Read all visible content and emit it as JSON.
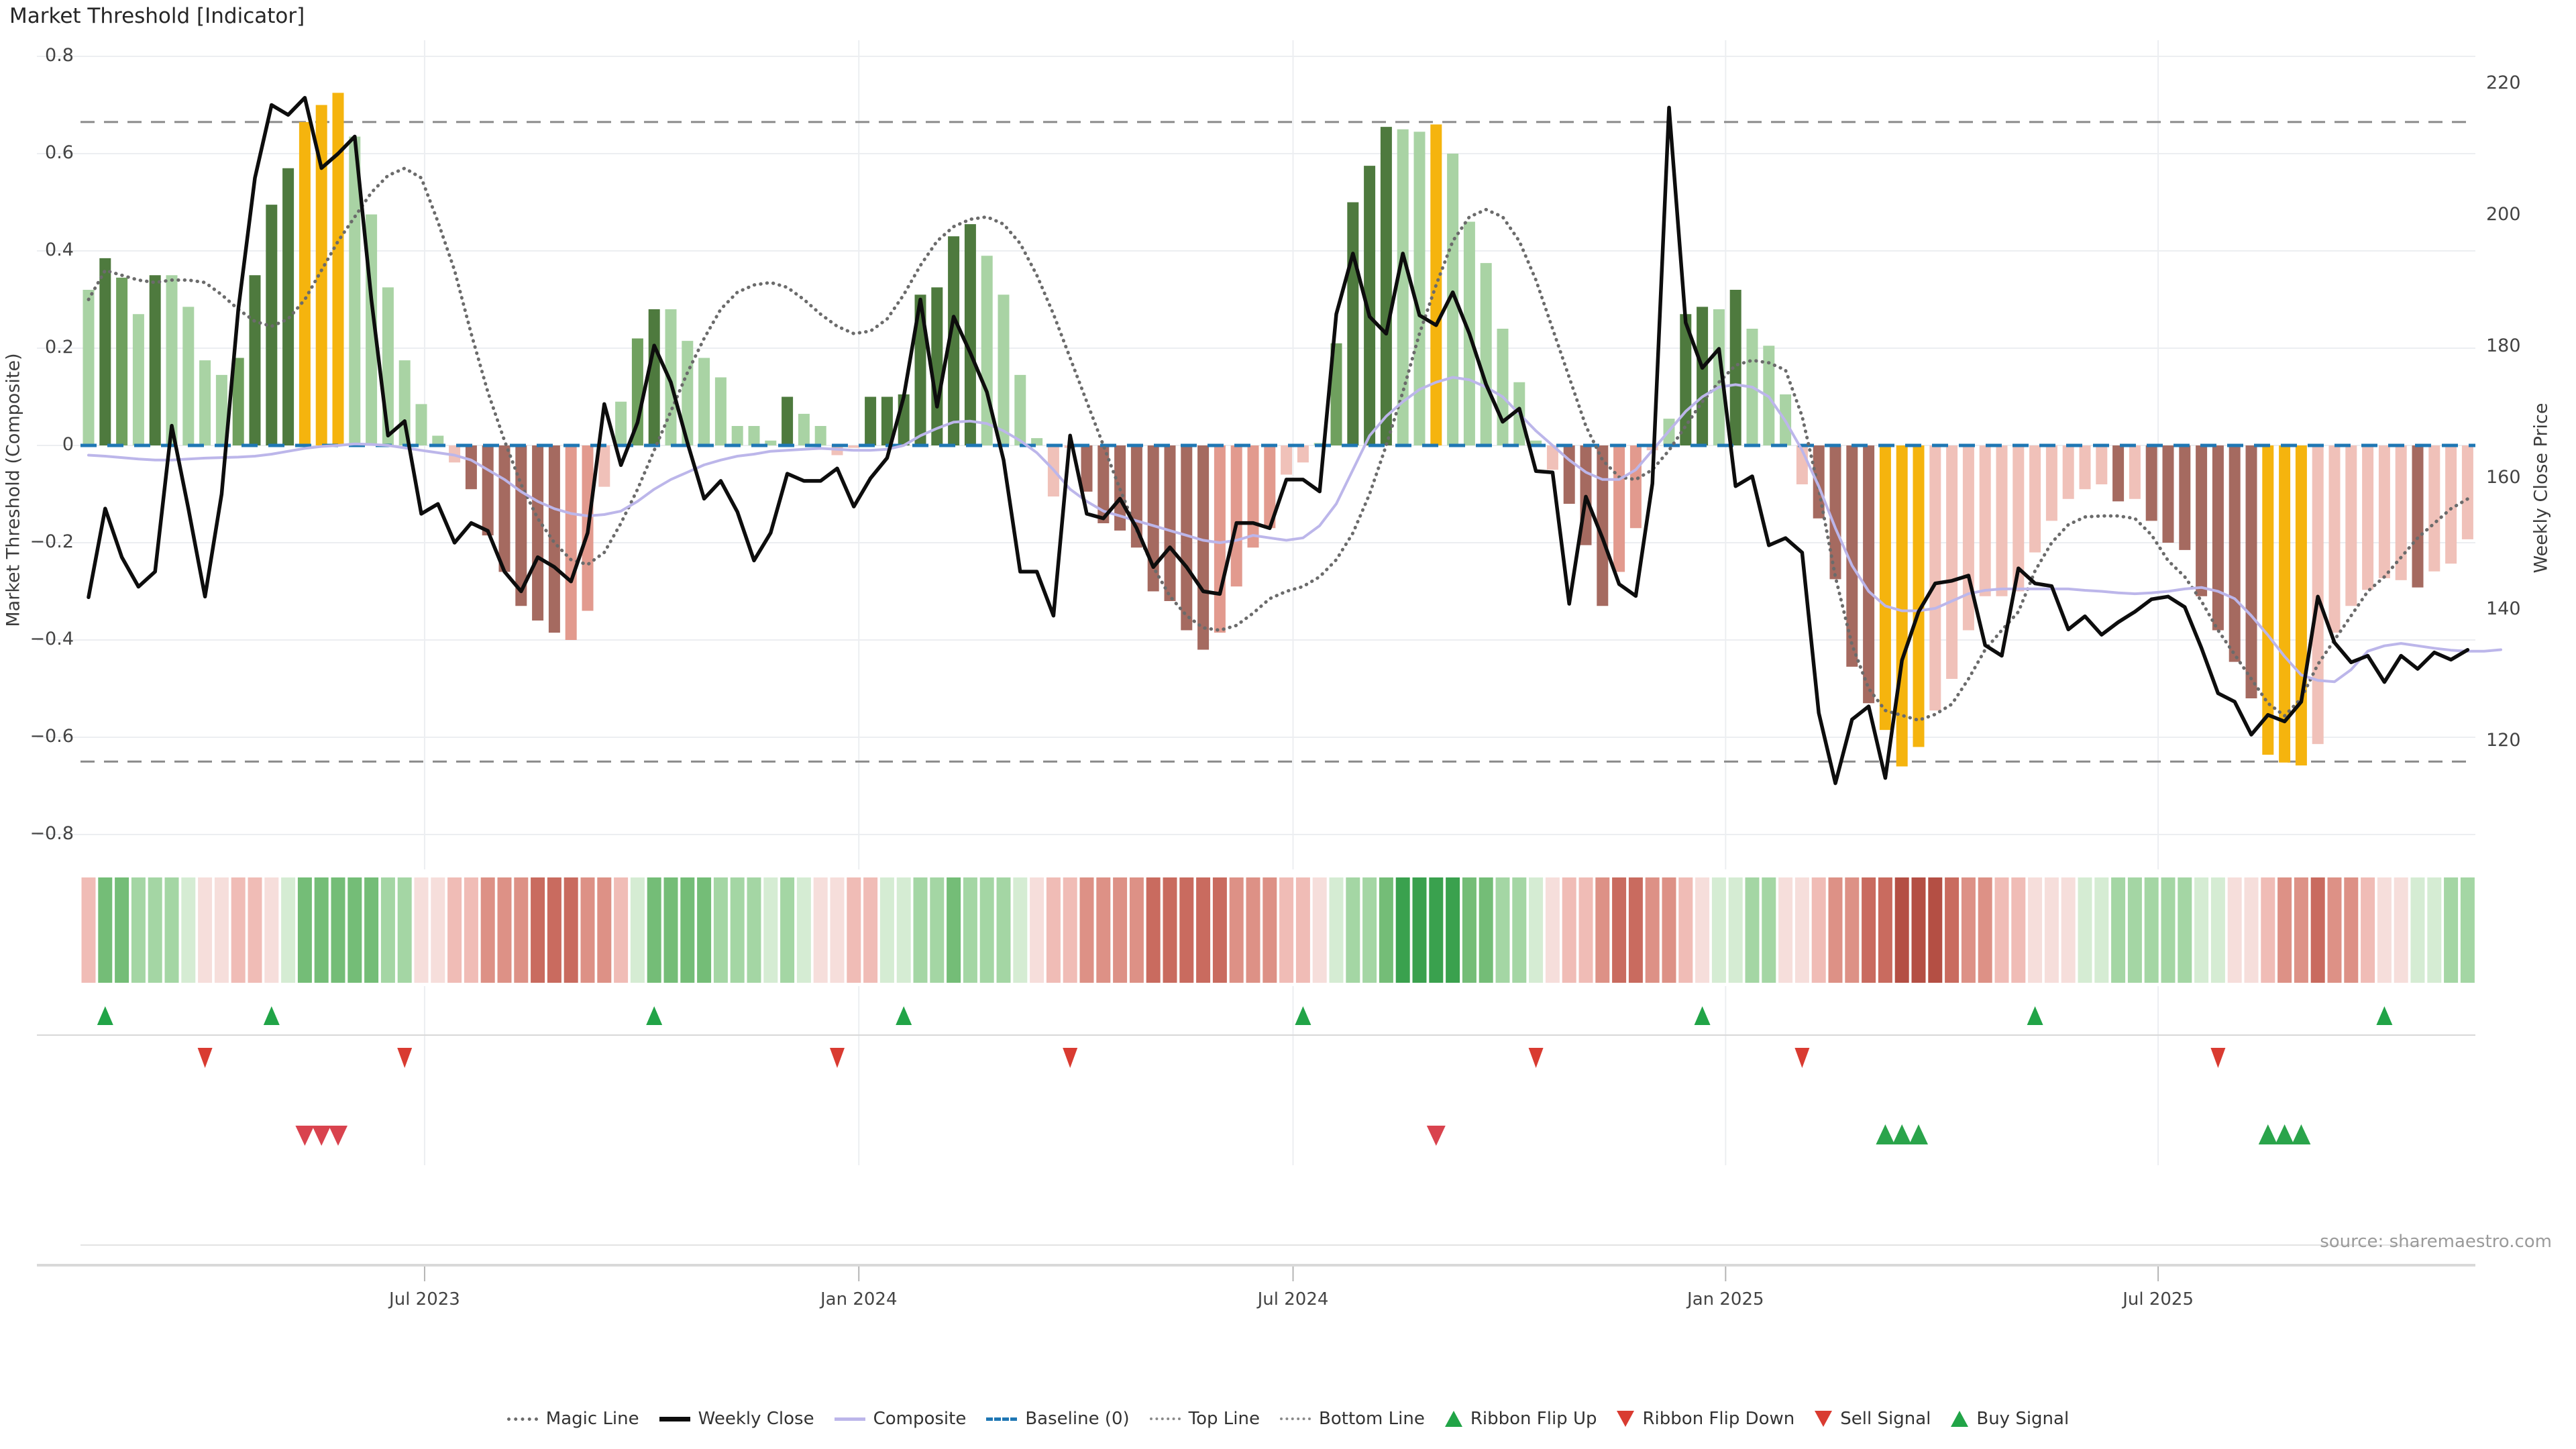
{
  "title": "Market Threshold [Indicator]",
  "source_note": "source: sharemaestro.com",
  "colors": {
    "bar": {
      "g1": "#a9d3a4",
      "g2": "#6fa05e",
      "g3": "#4e7a3e",
      "gold": "#f5b40e",
      "r1": "#f0c1b9",
      "r2": "#e29a8e",
      "r3": "#a56a60"
    },
    "ribbon": {
      "rg3": "#3aa14e",
      "rg2": "#74bd77",
      "rg1": "#a4d6a4",
      "rg0": "#d5ecd3",
      "rr0": "#f6dedb",
      "rr1": "#f0bcb6",
      "rr2": "#dd9186",
      "rr3": "#c96b5f",
      "rr4": "#b44f44"
    },
    "weekly_close": "#0d0d0d",
    "composite": "#bcb6ea",
    "magic": "#6b6b6b",
    "baseline": "#1f77b4",
    "guide": "#8a8a8a",
    "grid": "#eceef1",
    "axis_line": "#d9d9d9",
    "tick_mark": "#b5b5b5",
    "flip_up_green": "#21a447",
    "flip_down_red": "#d93b31",
    "sell_red": "#d9434e",
    "buy_green": "#2aa44b"
  },
  "legend": [
    {
      "label": "Magic Line",
      "marker": "dotted-gray"
    },
    {
      "label": "Weekly Close",
      "marker": "solid-black"
    },
    {
      "label": "Composite",
      "marker": "solid-lavender"
    },
    {
      "label": "Baseline (0)",
      "marker": "dashed-blue"
    },
    {
      "label": "Top Line",
      "marker": "dotted-gray-thin"
    },
    {
      "label": "Bottom Line",
      "marker": "dotted-gray-thin"
    },
    {
      "label": "Ribbon Flip Up",
      "marker": "tri-up-green"
    },
    {
      "label": "Ribbon Flip Down",
      "marker": "tri-down-red"
    },
    {
      "label": "Sell Signal",
      "marker": "tri-down-red"
    },
    {
      "label": "Buy Signal",
      "marker": "tri-up-green"
    }
  ],
  "chart_data": {
    "type": "bar+line",
    "title": "Market Threshold [Indicator]",
    "left_axis": {
      "label": "Market Threshold (Composite)",
      "ticks": [
        {
          "v": 0.8,
          "label": "0.8"
        },
        {
          "v": 0.6,
          "label": "0.6"
        },
        {
          "v": 0.4,
          "label": "0.4"
        },
        {
          "v": 0.2,
          "label": "0.2"
        },
        {
          "v": 0,
          "label": "0"
        },
        {
          "v": -0.2,
          "label": "−0.2"
        },
        {
          "v": -0.4,
          "label": "−0.4"
        },
        {
          "v": -0.6,
          "label": "−0.6"
        },
        {
          "v": -0.8,
          "label": "−0.8"
        }
      ],
      "ylim": [
        -0.9,
        0.84
      ]
    },
    "right_axis": {
      "label": "Weekly Close Price",
      "ticks": [
        {
          "p": 220,
          "label": "220"
        },
        {
          "p": 200,
          "label": "200"
        },
        {
          "p": 180,
          "label": "180"
        },
        {
          "p": 160,
          "label": "160"
        },
        {
          "p": 140,
          "label": "140"
        },
        {
          "p": 120,
          "label": "120"
        }
      ]
    },
    "x_axis": {
      "ticks": [
        {
          "label": "Jul 2023",
          "week": 20.2
        },
        {
          "label": "Jan 2024",
          "week": 46.3
        },
        {
          "label": "Jul 2024",
          "week": 72.4
        },
        {
          "label": "Jan 2025",
          "week": 98.4
        },
        {
          "label": "Jul 2025",
          "week": 124.4
        }
      ]
    },
    "top_line": 0.665,
    "bottom_line": -0.65,
    "baseline": 0,
    "weeks": 144,
    "bars": {
      "values": [
        0.32,
        0.385,
        0.345,
        0.27,
        0.35,
        0.35,
        0.285,
        0.175,
        0.145,
        0.18,
        0.35,
        0.495,
        0.57,
        0.665,
        0.7,
        0.725,
        0.635,
        0.475,
        0.325,
        0.175,
        0.085,
        0.02,
        -0.035,
        -0.09,
        -0.185,
        -0.26,
        -0.33,
        -0.36,
        -0.385,
        -0.4,
        -0.34,
        -0.085,
        0.09,
        0.22,
        0.28,
        0.28,
        0.215,
        0.18,
        0.14,
        0.04,
        0.04,
        0.01,
        0.1,
        0.065,
        0.04,
        -0.02,
        -0.005,
        0.1,
        0.1,
        0.105,
        0.31,
        0.325,
        0.43,
        0.455,
        0.39,
        0.31,
        0.145,
        0.015,
        -0.105,
        -0.005,
        -0.095,
        -0.16,
        -0.175,
        -0.21,
        -0.3,
        -0.32,
        -0.38,
        -0.42,
        -0.385,
        -0.29,
        -0.21,
        -0.17,
        -0.06,
        -0.035,
        0.005,
        0.21,
        0.5,
        0.575,
        0.655,
        0.65,
        0.645,
        0.66,
        0.6,
        0.46,
        0.375,
        0.24,
        0.13,
        0.01,
        -0.05,
        -0.12,
        -0.205,
        -0.33,
        -0.26,
        -0.17,
        -0.01,
        0.055,
        0.27,
        0.285,
        0.28,
        0.32,
        0.24,
        0.205,
        0.105,
        -0.08,
        -0.15,
        -0.275,
        -0.455,
        -0.53,
        -0.585,
        -0.66,
        -0.62,
        -0.545,
        -0.48,
        -0.38,
        -0.31,
        -0.31,
        -0.3,
        -0.22,
        -0.155,
        -0.11,
        -0.09,
        -0.08,
        -0.115,
        -0.11,
        -0.155,
        -0.2,
        -0.215,
        -0.31,
        -0.38,
        -0.445,
        -0.52,
        -0.636,
        -0.652,
        -0.658,
        -0.614,
        -0.385,
        -0.33,
        -0.297,
        -0.273,
        -0.277,
        -0.292,
        -0.259,
        -0.243,
        -0.193
      ],
      "color_classes": [
        "g1",
        "g3",
        "g2",
        "g1",
        "g3",
        "g1",
        "g1",
        "g1",
        "g1",
        "g2",
        "g3",
        "g3",
        "g3",
        "gold",
        "gold",
        "gold",
        "g1",
        "g1",
        "g1",
        "g1",
        "g1",
        "g1",
        "r1",
        "r3",
        "r3",
        "r3",
        "r3",
        "r3",
        "r3",
        "r2",
        "r2",
        "r1",
        "g1",
        "g2",
        "g3",
        "g1",
        "g1",
        "g1",
        "g1",
        "g1",
        "g1",
        "g1",
        "g3",
        "g1",
        "g1",
        "r1",
        "r1",
        "g3",
        "g3",
        "g3",
        "g3",
        "g3",
        "g3",
        "g3",
        "g1",
        "g1",
        "g1",
        "g1",
        "r1",
        "r1",
        "r3",
        "r3",
        "r3",
        "r3",
        "r3",
        "r3",
        "r3",
        "r3",
        "r2",
        "r2",
        "r2",
        "r2",
        "r1",
        "r1",
        "g1",
        "g2",
        "g3",
        "g3",
        "g3",
        "g1",
        "g1",
        "gold",
        "g1",
        "g1",
        "g1",
        "g1",
        "g1",
        "g1",
        "r1",
        "r3",
        "r3",
        "r3",
        "r2",
        "r2",
        "r1",
        "g1",
        "g3",
        "g3",
        "g1",
        "g3",
        "g1",
        "g1",
        "g1",
        "r1",
        "r3",
        "r3",
        "r3",
        "r3",
        "gold",
        "gold",
        "gold",
        "r1",
        "r1",
        "r1",
        "r1",
        "r1",
        "r1",
        "r1",
        "r1",
        "r1",
        "r1",
        "r1",
        "r3",
        "r1",
        "r3",
        "r3",
        "r3",
        "r3",
        "r3",
        "r3",
        "r3",
        "gold",
        "gold",
        "gold",
        "r1",
        "r1",
        "r1",
        "r1",
        "r1",
        "r1",
        "r3",
        "r1",
        "r1",
        "r1"
      ]
    },
    "series": [
      {
        "name": "Weekly Close",
        "axis": "price",
        "values": [
          141.9,
          155.4,
          148.0,
          143.5,
          145.8,
          168.0,
          155.4,
          142.0,
          157.6,
          185.7,
          205.7,
          216.8,
          215.3,
          217.9,
          207.2,
          209.4,
          212.0,
          187.2,
          166.5,
          168.7,
          154.6,
          156.1,
          150.2,
          153.2,
          152.0,
          145.8,
          142.8,
          148.0,
          146.5,
          144.3,
          151.7,
          171.3,
          162.0,
          168.5,
          180.2,
          174.6,
          165.4,
          156.9,
          159.6,
          154.9,
          147.5,
          151.7,
          160.7,
          159.6,
          159.6,
          161.5,
          155.7,
          160.0,
          163.1,
          172.4,
          187.2,
          170.9,
          184.6,
          179.1,
          173.1,
          162.8,
          145.8,
          145.8,
          139.1,
          166.5,
          154.6,
          153.9,
          156.9,
          152.4,
          146.5,
          149.5,
          146.5,
          142.8,
          142.4,
          153.2,
          153.2,
          152.4,
          159.8,
          159.8,
          158.0,
          185.0,
          194.2,
          184.6,
          182.0,
          194.2,
          184.8,
          183.3,
          188.3,
          182.0,
          174.3,
          168.6,
          170.6,
          161.1,
          160.9,
          140.9,
          157.2,
          150.9,
          143.9,
          142.1,
          159.2,
          216.4,
          183.7,
          176.8,
          179.7,
          158.8,
          160.3,
          149.8,
          150.9,
          148.7,
          124.3,
          113.6,
          123.3,
          125.3,
          114.4,
          132.3,
          139.7,
          144.0,
          144.4,
          145.2,
          134.6,
          133.0,
          146.3,
          144.0,
          143.6,
          137.0,
          139.0,
          136.2,
          138.1,
          139.7,
          141.6,
          142.0,
          140.4,
          134.2,
          127.3,
          126.0,
          121.0,
          124.0,
          123.0,
          126.0,
          142.0,
          135.0,
          132.0,
          133.0,
          129.0,
          133.0,
          131.0,
          133.5,
          132.4,
          133.9
        ]
      },
      {
        "name": "Composite",
        "axis": "threshold",
        "values": [
          -0.02,
          -0.022,
          -0.025,
          -0.028,
          -0.03,
          -0.03,
          -0.028,
          -0.026,
          -0.025,
          -0.024,
          -0.022,
          -0.018,
          -0.012,
          -0.006,
          -0.002,
          0,
          0.003,
          0.002,
          0,
          -0.005,
          -0.01,
          -0.015,
          -0.02,
          -0.03,
          -0.05,
          -0.07,
          -0.095,
          -0.115,
          -0.13,
          -0.14,
          -0.145,
          -0.142,
          -0.135,
          -0.115,
          -0.09,
          -0.07,
          -0.055,
          -0.04,
          -0.03,
          -0.022,
          -0.018,
          -0.012,
          -0.01,
          -0.008,
          -0.006,
          -0.008,
          -0.01,
          -0.01,
          -0.008,
          0,
          0.02,
          0.035,
          0.048,
          0.05,
          0.045,
          0.03,
          0.01,
          -0.015,
          -0.05,
          -0.09,
          -0.115,
          -0.135,
          -0.145,
          -0.155,
          -0.165,
          -0.175,
          -0.185,
          -0.195,
          -0.2,
          -0.195,
          -0.185,
          -0.19,
          -0.195,
          -0.19,
          -0.165,
          -0.12,
          -0.05,
          0.02,
          0.06,
          0.09,
          0.115,
          0.13,
          0.14,
          0.135,
          0.12,
          0.1,
          0.065,
          0.03,
          0,
          -0.03,
          -0.055,
          -0.07,
          -0.07,
          -0.05,
          -0.01,
          0.03,
          0.07,
          0.1,
          0.12,
          0.125,
          0.12,
          0.1,
          0.05,
          -0.01,
          -0.084,
          -0.17,
          -0.247,
          -0.3,
          -0.33,
          -0.34,
          -0.34,
          -0.335,
          -0.32,
          -0.305,
          -0.298,
          -0.295,
          -0.295,
          -0.295,
          -0.295,
          -0.295,
          -0.298,
          -0.3,
          -0.303,
          -0.305,
          -0.303,
          -0.3,
          -0.295,
          -0.292,
          -0.3,
          -0.315,
          -0.35,
          -0.39,
          -0.434,
          -0.472,
          -0.483,
          -0.486,
          -0.461,
          -0.423,
          -0.412,
          -0.407,
          -0.412,
          -0.417,
          -0.421,
          -0.423,
          -0.423,
          -0.42
        ]
      },
      {
        "name": "Magic Line",
        "axis": "threshold",
        "values": [
          0.3,
          0.36,
          0.35,
          0.34,
          0.335,
          0.34,
          0.34,
          0.335,
          0.31,
          0.28,
          0.255,
          0.245,
          0.26,
          0.3,
          0.36,
          0.42,
          0.47,
          0.52,
          0.555,
          0.57,
          0.55,
          0.46,
          0.36,
          0.23,
          0.11,
          0.01,
          -0.08,
          -0.15,
          -0.2,
          -0.235,
          -0.245,
          -0.22,
          -0.16,
          -0.09,
          -0.01,
          0.07,
          0.15,
          0.22,
          0.28,
          0.315,
          0.33,
          0.335,
          0.325,
          0.3,
          0.27,
          0.245,
          0.23,
          0.235,
          0.26,
          0.31,
          0.37,
          0.42,
          0.45,
          0.465,
          0.47,
          0.455,
          0.415,
          0.35,
          0.27,
          0.18,
          0.09,
          0,
          -0.09,
          -0.175,
          -0.25,
          -0.31,
          -0.35,
          -0.375,
          -0.38,
          -0.37,
          -0.345,
          -0.315,
          -0.3,
          -0.29,
          -0.27,
          -0.235,
          -0.18,
          -0.1,
          0,
          0.11,
          0.23,
          0.33,
          0.42,
          0.47,
          0.485,
          0.47,
          0.42,
          0.34,
          0.24,
          0.14,
          0.04,
          -0.03,
          -0.065,
          -0.07,
          -0.05,
          -0.01,
          0.04,
          0.09,
          0.13,
          0.165,
          0.175,
          0.17,
          0.155,
          0.06,
          -0.09,
          -0.27,
          -0.41,
          -0.5,
          -0.545,
          -0.555,
          -0.565,
          -0.553,
          -0.532,
          -0.48,
          -0.42,
          -0.38,
          -0.342,
          -0.258,
          -0.2,
          -0.163,
          -0.147,
          -0.145,
          -0.145,
          -0.15,
          -0.184,
          -0.237,
          -0.27,
          -0.32,
          -0.38,
          -0.43,
          -0.48,
          -0.53,
          -0.556,
          -0.52,
          -0.45,
          -0.4,
          -0.35,
          -0.3,
          -0.27,
          -0.23,
          -0.19,
          -0.16,
          -0.13,
          -0.11
        ]
      }
    ],
    "ribbon": [
      "rr1",
      "rg2",
      "rg2",
      "rg1",
      "rg1",
      "rg1",
      "rg0",
      "rr0",
      "rr0",
      "rr1",
      "rr1",
      "rr0",
      "rg0",
      "rg2",
      "rg2",
      "rg2",
      "rg2",
      "rg2",
      "rg1",
      "rg1",
      "rr0",
      "rr0",
      "rr1",
      "rr1",
      "rr2",
      "rr2",
      "rr2",
      "rr3",
      "rr3",
      "rr3",
      "rr2",
      "rr2",
      "rr1",
      "rg0",
      "rg2",
      "rg2",
      "rg2",
      "rg2",
      "rg1",
      "rg1",
      "rg1",
      "rg0",
      "rg1",
      "rg0",
      "rr0",
      "rr0",
      "rr1",
      "rr1",
      "rg0",
      "rg0",
      "rg1",
      "rg1",
      "rg2",
      "rg1",
      "rg1",
      "rg1",
      "rg0",
      "rr0",
      "rr1",
      "rr1",
      "rr2",
      "rr2",
      "rr2",
      "rr2",
      "rr3",
      "rr3",
      "rr3",
      "rr3",
      "rr3",
      "rr2",
      "rr2",
      "rr2",
      "rr1",
      "rr1",
      "rr0",
      "rg0",
      "rg1",
      "rg1",
      "rg2",
      "rg3",
      "rg3",
      "rg3",
      "rg3",
      "rg2",
      "rg2",
      "rg1",
      "rg1",
      "rg0",
      "rr0",
      "rr1",
      "rr1",
      "rr2",
      "rr3",
      "rr3",
      "rr2",
      "rr2",
      "rr1",
      "rr0",
      "rg0",
      "rg0",
      "rg1",
      "rg1",
      "rr0",
      "rr0",
      "rr1",
      "rr2",
      "rr2",
      "rr3",
      "rr3",
      "rr4",
      "rr4",
      "rr4",
      "rr3",
      "rr2",
      "rr2",
      "rr1",
      "rr1",
      "rr0",
      "rr0",
      "rr0",
      "rg0",
      "rg0",
      "rg1",
      "rg1",
      "rg1",
      "rg1",
      "rg1",
      "rg0",
      "rg0",
      "rr0",
      "rr0",
      "rr1",
      "rr2",
      "rr2",
      "rr3",
      "rr2",
      "rr2",
      "rr1",
      "rr0",
      "rr0",
      "rg0",
      "rg0",
      "rg1",
      "rg1"
    ],
    "signals": {
      "ribbon_flip_up_weeks": [
        1,
        11,
        34,
        49,
        73,
        97,
        117,
        138
      ],
      "ribbon_flip_down_weeks": [
        7,
        19,
        45,
        59,
        87,
        103,
        128
      ],
      "sell_weeks": [
        13,
        14,
        15,
        81
      ],
      "buy_weeks": [
        108,
        109,
        110,
        131,
        132,
        133
      ]
    }
  }
}
